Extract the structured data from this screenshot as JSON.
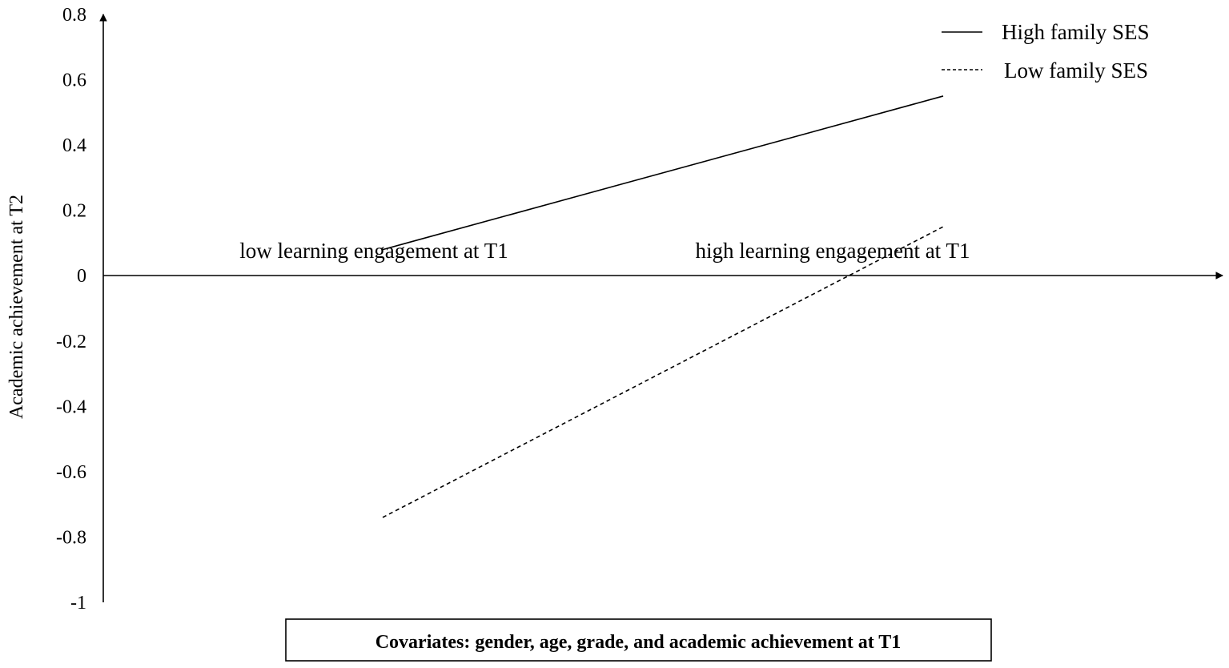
{
  "chart_data": {
    "type": "line",
    "ylabel": "Academic achievement at T2",
    "xlabel": "",
    "ylim": [
      -1,
      0.8
    ],
    "yticks": [
      "0.8",
      "0.6",
      "0.4",
      "0.2",
      "0",
      "-0.2",
      "-0.4",
      "-0.6",
      "-0.8",
      "-1"
    ],
    "categories": [
      "low learning engagement at T1",
      "high learning engagement at T1"
    ],
    "series": [
      {
        "name": "High family SES",
        "values": [
          0.08,
          0.55
        ],
        "line_style": "solid"
      },
      {
        "name": "Low family SES",
        "values": [
          -0.74,
          0.15
        ],
        "line_style": "dashed"
      }
    ],
    "legend_position": "top-right",
    "grid": false,
    "note": "Covariates: gender, age, grade, and academic achievement at T1"
  }
}
